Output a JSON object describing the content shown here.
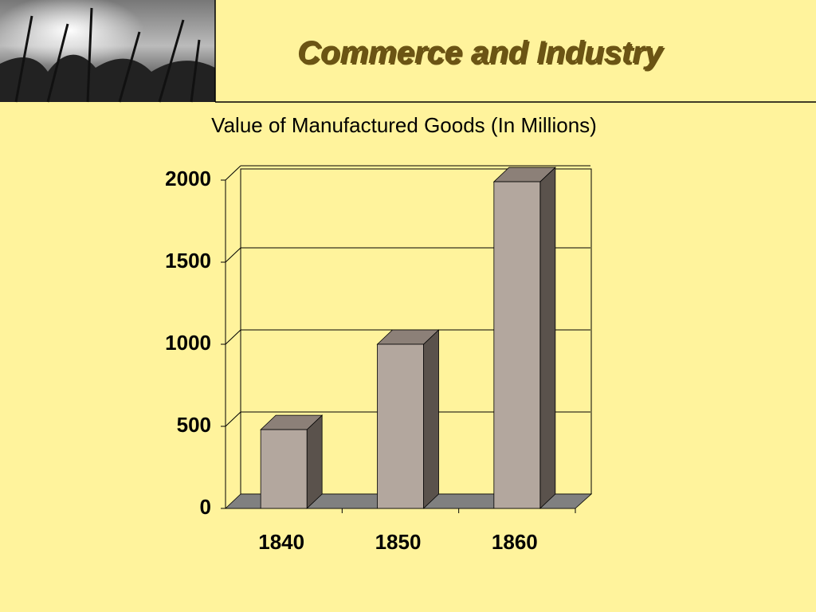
{
  "slide": {
    "title": "Commerce and Industry"
  },
  "chart_data": {
    "type": "bar3d",
    "title": "Value of Manufactured Goods (In Millions)",
    "categories": [
      "1840",
      "1850",
      "1860"
    ],
    "values": [
      480,
      1000,
      1990
    ],
    "color": "#b3a79e",
    "side_color": "#5a524c",
    "top_color": "#8c8078",
    "ylim": [
      0,
      2000
    ],
    "yticks": [
      0,
      500,
      1000,
      1500,
      2000
    ],
    "grid": true
  }
}
